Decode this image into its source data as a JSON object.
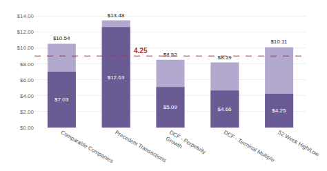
{
  "chart_data": {
    "type": "bar",
    "categories": [
      "Comparable Companies",
      "Precedent Transactions",
      "DCF - Perpetuity\nGrowth",
      "DCF - Terminal Multiple",
      "52 Week High/Low"
    ],
    "series": [
      {
        "color": "#6B5B95",
        "values": [
          7.03,
          12.63,
          5.09,
          4.66,
          4.25
        ],
        "value_labels": [
          "$7.03",
          "$12.63",
          "$5.09",
          "$4.66",
          "$4.25"
        ]
      },
      {
        "color": "#B3A8CE",
        "values": [
          10.54,
          13.48,
          8.52,
          8.19,
          10.11
        ],
        "value_labels": [
          "$10.54",
          "$13.48",
          "$8.52",
          "$8.19",
          "$10.11"
        ]
      }
    ],
    "stacked": false,
    "data_labels": true,
    "ylim": [
      0,
      15.0
    ],
    "yticks": [
      {
        "value": 0,
        "label": "$0.00"
      },
      {
        "value": 2,
        "label": "$2.00"
      },
      {
        "value": 4,
        "label": "$4.00"
      },
      {
        "value": 6,
        "label": "$6.00"
      },
      {
        "value": 8,
        "label": "$8.00"
      },
      {
        "value": 10,
        "label": "$10.00"
      },
      {
        "value": 12,
        "label": "$12.00"
      },
      {
        "value": 14,
        "label": "$14.00"
      }
    ],
    "grid": true,
    "reference_line": {
      "y": 9.0,
      "label": "4.25",
      "color": "#B03030"
    }
  }
}
